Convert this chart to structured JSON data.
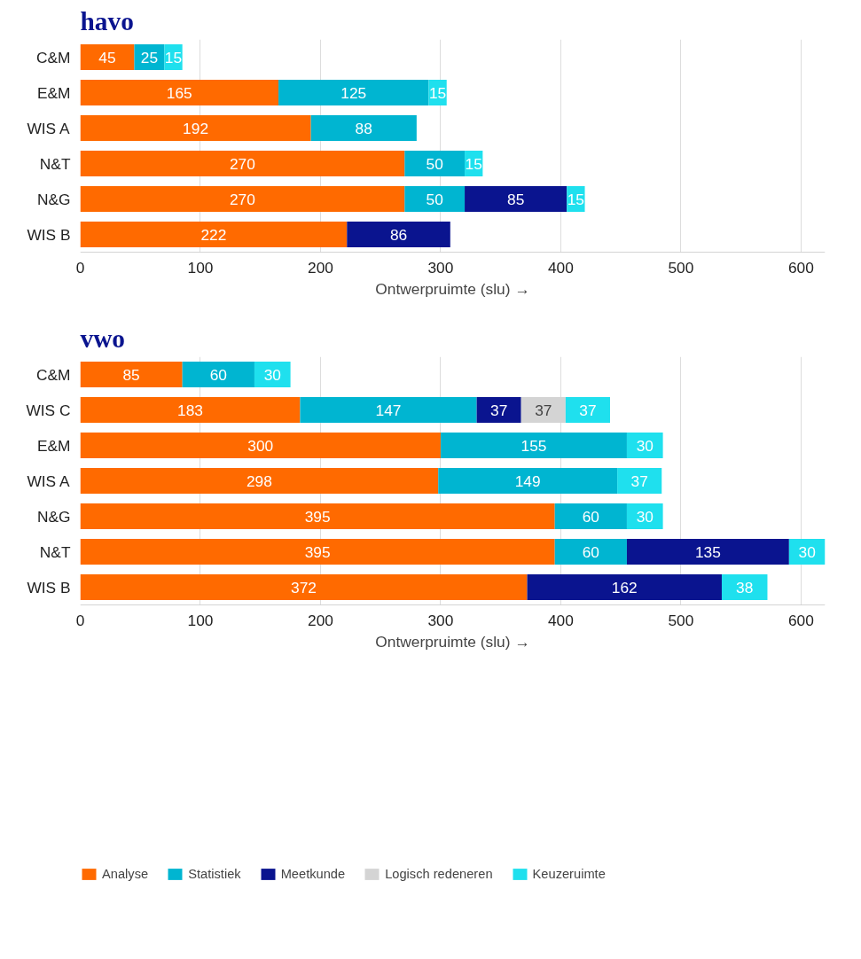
{
  "chart_data": [
    {
      "type": "bar",
      "orientation": "horizontal",
      "stacked": true,
      "title": "havo",
      "xlabel": "Ontwerpruimte (slu) →",
      "categories": [
        "C&M",
        "E&M",
        "WIS A",
        "N&T",
        "N&G",
        "WIS B"
      ],
      "xlim": [
        0,
        620
      ],
      "xticks": [
        0,
        100,
        200,
        300,
        400,
        500,
        600
      ],
      "grid": "x",
      "data_labels": true,
      "legend": false,
      "series": [
        {
          "color": "#ff6a00",
          "values": [
            45,
            165,
            192,
            270,
            270,
            222
          ]
        },
        {
          "color": "#00b5d1",
          "values": [
            25,
            125,
            88,
            50,
            50,
            null
          ]
        },
        {
          "color": "#0a148f",
          "values": [
            null,
            null,
            null,
            null,
            85,
            86
          ]
        },
        {
          "color": "#1fe0ee",
          "values": [
            15,
            15,
            null,
            15,
            15,
            null
          ]
        }
      ]
    },
    {
      "type": "bar",
      "orientation": "horizontal",
      "stacked": true,
      "title": "vwo",
      "xlabel": "Ontwerpruimte (slu) →",
      "categories": [
        "C&M",
        "WIS C",
        "E&M",
        "WIS A",
        "N&G",
        "N&T",
        "WIS B"
      ],
      "xlim": [
        0,
        620
      ],
      "xticks": [
        0,
        100,
        200,
        300,
        400,
        500,
        600
      ],
      "grid": "x",
      "data_labels": true,
      "legend": "bottom left",
      "series": [
        {
          "name": "Analyse",
          "color": "#ff6a00",
          "values": [
            85,
            183,
            300,
            298,
            395,
            395,
            372
          ]
        },
        {
          "name": "Statistiek",
          "color": "#00b5d1",
          "values": [
            60,
            147,
            155,
            149,
            60,
            60,
            null
          ]
        },
        {
          "name": "Meetkunde",
          "color": "#0a148f",
          "values": [
            null,
            37,
            null,
            null,
            null,
            135,
            162
          ]
        },
        {
          "name": "Logisch redeneren",
          "color": "#d4d4d4",
          "values": [
            null,
            37,
            null,
            null,
            null,
            null,
            null
          ]
        },
        {
          "name": "Keuzeruimte",
          "color": "#1fe0ee",
          "values": [
            30,
            37,
            30,
            37,
            30,
            30,
            38
          ]
        }
      ]
    }
  ]
}
